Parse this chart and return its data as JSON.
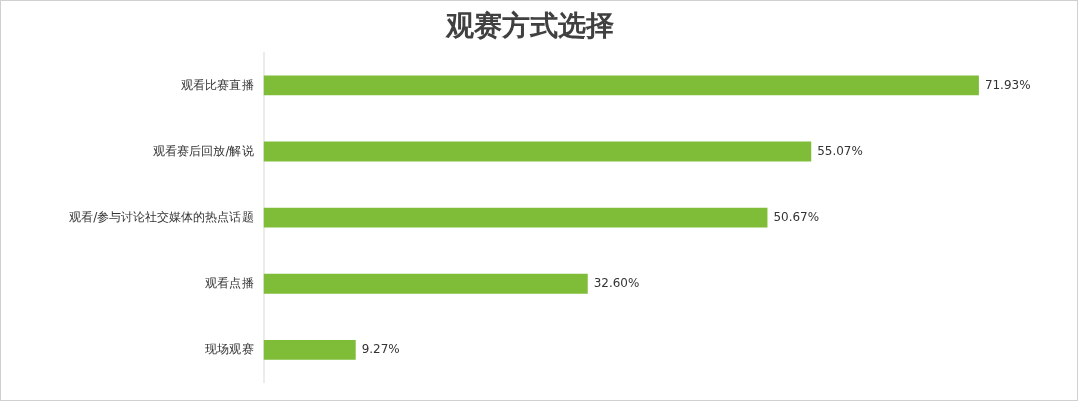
{
  "chart_data": {
    "type": "bar",
    "orientation": "horizontal",
    "title": "观赛方式选择",
    "categories": [
      "观看比赛直播",
      "观看赛后回放/解说",
      "观看/参与讨论社交媒体的热点话题",
      "观看点播",
      "现场观赛"
    ],
    "values": [
      71.93,
      55.07,
      50.67,
      32.6,
      9.27
    ],
    "value_labels": [
      "71.93%",
      "55.07%",
      "50.67%",
      "32.60%",
      "9.27%"
    ],
    "color": "#7fbd39",
    "legend": false
  }
}
